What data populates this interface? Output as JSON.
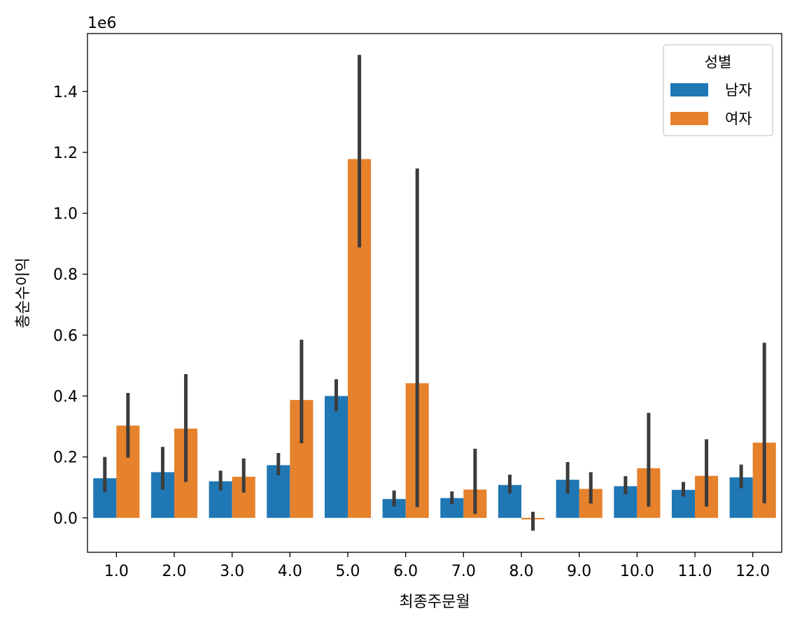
{
  "chart_data": {
    "type": "bar",
    "categories": [
      "1.0",
      "2.0",
      "3.0",
      "4.0",
      "5.0",
      "6.0",
      "7.0",
      "8.0",
      "9.0",
      "10.0",
      "11.0",
      "12.0"
    ],
    "series": [
      {
        "name": "남자",
        "color": "#1f77b4",
        "values": [
          0.13,
          0.15,
          0.12,
          0.173,
          0.4,
          0.062,
          0.065,
          0.108,
          0.125,
          0.104,
          0.092,
          0.133
        ],
        "err_low": [
          0.085,
          0.093,
          0.09,
          0.14,
          0.35,
          0.037,
          0.045,
          0.08,
          0.08,
          0.077,
          0.07,
          0.097
        ],
        "err_high": [
          0.2,
          0.233,
          0.155,
          0.213,
          0.455,
          0.09,
          0.087,
          0.142,
          0.183,
          0.137,
          0.118,
          0.175
        ]
      },
      {
        "name": "여자",
        "color": "#e6812c",
        "values": [
          0.303,
          0.293,
          0.135,
          0.387,
          1.178,
          0.442,
          0.093,
          -0.005,
          0.095,
          0.163,
          0.138,
          0.247
        ],
        "err_low": [
          0.198,
          0.118,
          0.083,
          0.245,
          0.888,
          0.035,
          0.013,
          -0.042,
          0.047,
          0.037,
          0.037,
          0.048
        ],
        "err_high": [
          0.41,
          0.472,
          0.195,
          0.585,
          1.52,
          1.147,
          0.227,
          0.02,
          0.15,
          0.345,
          0.258,
          0.575
        ]
      }
    ],
    "xlabel": "최종주문월",
    "ylabel": "총순수이익",
    "y_tick_labels": [
      "0.0",
      "0.2",
      "0.4",
      "0.6",
      "0.8",
      "1.0",
      "1.2",
      "1.4"
    ],
    "y_tick_values": [
      0.0,
      0.2,
      0.4,
      0.6,
      0.8,
      1.0,
      1.2,
      1.4
    ],
    "ylim": [
      -0.113,
      1.59
    ],
    "offset_label": "1e6",
    "legend_title": "성별",
    "legend_position": "top-right",
    "errorbar_color": "#3c3c3c",
    "grid": false
  }
}
